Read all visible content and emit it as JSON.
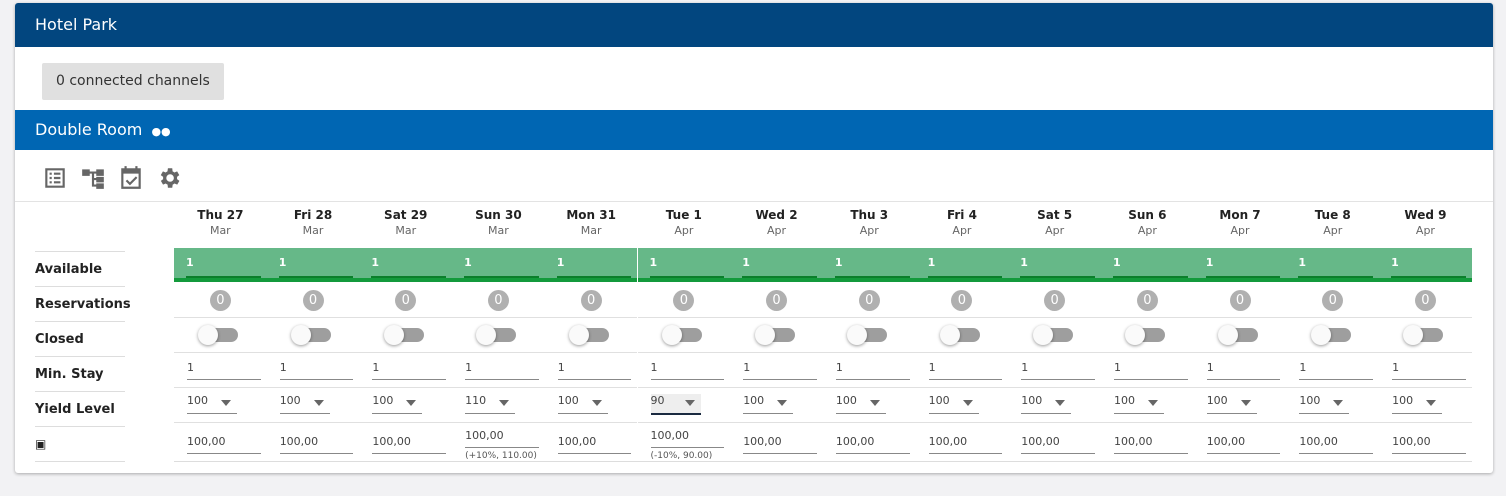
{
  "hotel": {
    "title": "Hotel Park",
    "channels_button": "0 connected channels"
  },
  "room": {
    "title": "Double Room",
    "occupancy_icon": "two-persons-icon",
    "tools": [
      "list-icon",
      "tree-icon",
      "calendar-check-icon",
      "gear-icon"
    ]
  },
  "labels": {
    "available": "Available",
    "reservations": "Reservations",
    "closed": "Closed",
    "min_stay": "Min. Stay",
    "yield_level": "Yield Level",
    "price_icon": "bed-icon"
  },
  "days": [
    {
      "day": "Thu 27",
      "month": "Mar",
      "available": "1",
      "reservations": "0",
      "closed": false,
      "min_stay": "1",
      "yield": "100",
      "price": "100,00",
      "hint": ""
    },
    {
      "day": "Fri 28",
      "month": "Mar",
      "available": "1",
      "reservations": "0",
      "closed": false,
      "min_stay": "1",
      "yield": "100",
      "price": "100,00",
      "hint": ""
    },
    {
      "day": "Sat 29",
      "month": "Mar",
      "available": "1",
      "reservations": "0",
      "closed": false,
      "min_stay": "1",
      "yield": "100",
      "price": "100,00",
      "hint": ""
    },
    {
      "day": "Sun 30",
      "month": "Mar",
      "available": "1",
      "reservations": "0",
      "closed": false,
      "min_stay": "1",
      "yield": "110",
      "price": "100,00",
      "hint": "(+10%, 110.00)"
    },
    {
      "day": "Mon 31",
      "month": "Mar",
      "available": "1",
      "reservations": "0",
      "closed": false,
      "min_stay": "1",
      "yield": "100",
      "price": "100,00",
      "hint": ""
    },
    {
      "day": "Tue 1",
      "month": "Apr",
      "available": "1",
      "reservations": "0",
      "closed": false,
      "min_stay": "1",
      "yield": "90",
      "price": "100,00",
      "hint": "(-10%, 90.00)",
      "active": true
    },
    {
      "day": "Wed 2",
      "month": "Apr",
      "available": "1",
      "reservations": "0",
      "closed": false,
      "min_stay": "1",
      "yield": "100",
      "price": "100,00",
      "hint": ""
    },
    {
      "day": "Thu 3",
      "month": "Apr",
      "available": "1",
      "reservations": "0",
      "closed": false,
      "min_stay": "1",
      "yield": "100",
      "price": "100,00",
      "hint": ""
    },
    {
      "day": "Fri 4",
      "month": "Apr",
      "available": "1",
      "reservations": "0",
      "closed": false,
      "min_stay": "1",
      "yield": "100",
      "price": "100,00",
      "hint": ""
    },
    {
      "day": "Sat 5",
      "month": "Apr",
      "available": "1",
      "reservations": "0",
      "closed": false,
      "min_stay": "1",
      "yield": "100",
      "price": "100,00",
      "hint": ""
    },
    {
      "day": "Sun 6",
      "month": "Apr",
      "available": "1",
      "reservations": "0",
      "closed": false,
      "min_stay": "1",
      "yield": "100",
      "price": "100,00",
      "hint": ""
    },
    {
      "day": "Mon 7",
      "month": "Apr",
      "available": "1",
      "reservations": "0",
      "closed": false,
      "min_stay": "1",
      "yield": "100",
      "price": "100,00",
      "hint": ""
    },
    {
      "day": "Tue 8",
      "month": "Apr",
      "available": "1",
      "reservations": "0",
      "closed": false,
      "min_stay": "1",
      "yield": "100",
      "price": "100,00",
      "hint": ""
    },
    {
      "day": "Wed 9",
      "month": "Apr",
      "available": "1",
      "reservations": "0",
      "closed": false,
      "min_stay": "1",
      "yield": "100",
      "price": "100,00",
      "hint": ""
    }
  ]
}
